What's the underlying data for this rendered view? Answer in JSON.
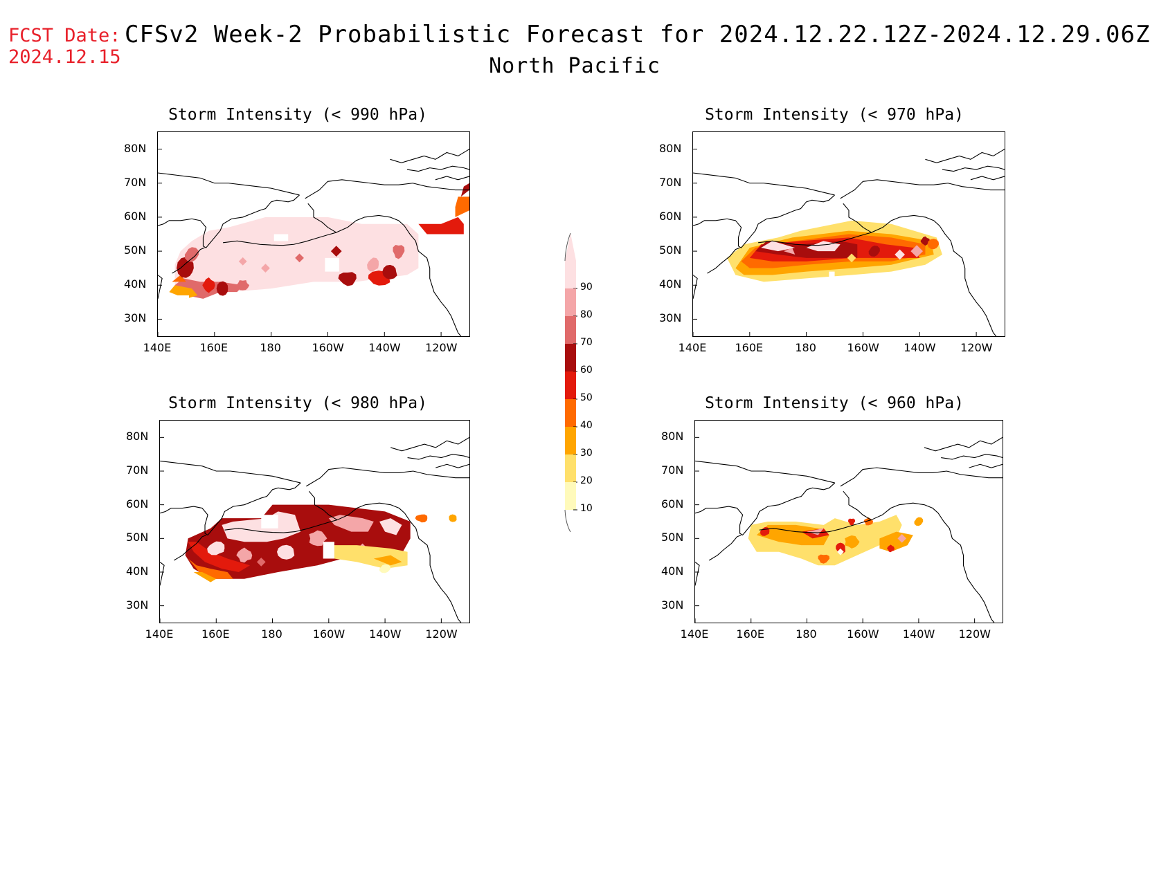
{
  "header": {
    "fcst_label": "FCST Date:",
    "fcst_date": "2024.12.15",
    "title": "CFSv2 Week-2 Probabilistic Forecast for 2024.12.22.12Z-2024.12.29.06Z",
    "subtitle": "North Pacific"
  },
  "panels": [
    {
      "id": "p990",
      "title": "Storm Intensity (< 990 hPa)"
    },
    {
      "id": "p970",
      "title": "Storm Intensity (< 970 hPa)"
    },
    {
      "id": "p980",
      "title": "Storm Intensity (< 980 hPa)"
    },
    {
      "id": "p960",
      "title": "Storm Intensity (< 960 hPa)"
    }
  ],
  "axes": {
    "lat_labels": [
      "80N",
      "70N",
      "60N",
      "50N",
      "40N",
      "30N"
    ],
    "lon_labels": [
      "140E",
      "160E",
      "180",
      "160W",
      "140W",
      "120W"
    ]
  },
  "legend": {
    "labels": [
      "90",
      "80",
      "70",
      "60",
      "50",
      "40",
      "30",
      "20",
      "10"
    ],
    "colors": [
      "#fde0e2",
      "#f4a6a8",
      "#e06a6a",
      "#a80d0d",
      "#e31a0c",
      "#ff6a00",
      "#ffa500",
      "#ffe06b",
      "#fffabb"
    ]
  }
}
